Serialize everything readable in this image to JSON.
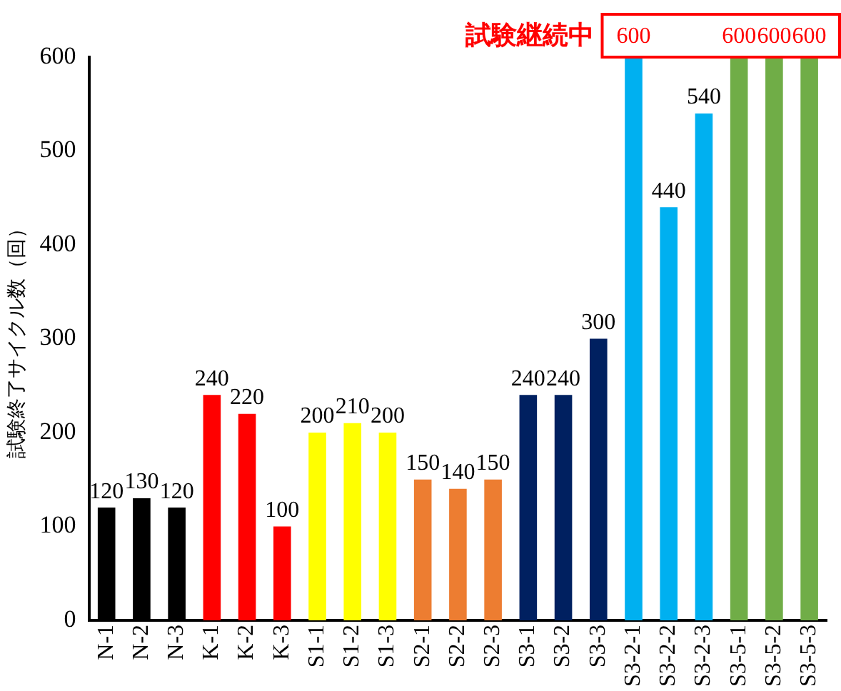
{
  "chart_data": {
    "type": "bar",
    "ylabel": "試験終了サイクル数（回）",
    "annotations": [
      "試験継続中"
    ],
    "categories": [
      "N-1",
      "N-2",
      "N-3",
      "K-1",
      "K-2",
      "K-3",
      "S1-1",
      "S1-2",
      "S1-3",
      "S2-1",
      "S2-2",
      "S2-3",
      "S3-1",
      "S3-2",
      "S3-3",
      "S3-2-1",
      "S3-2-2",
      "S3-2-3",
      "S3-5-1",
      "S3-5-2",
      "S3-5-3"
    ],
    "values": [
      120,
      130,
      120,
      240,
      220,
      100,
      200,
      210,
      200,
      150,
      140,
      150,
      240,
      240,
      300,
      600,
      440,
      540,
      600,
      600,
      600
    ],
    "colors": [
      "#000000",
      "#000000",
      "#000000",
      "#ff0000",
      "#ff0000",
      "#ff0000",
      "#ffff00",
      "#ffff00",
      "#ffff00",
      "#ed7d31",
      "#ed7d31",
      "#ed7d31",
      "#002060",
      "#002060",
      "#002060",
      "#00b0f0",
      "#00b0f0",
      "#00b0f0",
      "#70ad47",
      "#70ad47",
      "#70ad47"
    ],
    "data_labels": true,
    "ylim": [
      0,
      600
    ],
    "yticks": [
      0,
      100,
      200,
      300,
      400,
      500,
      600
    ],
    "grid": false,
    "legend": false
  }
}
